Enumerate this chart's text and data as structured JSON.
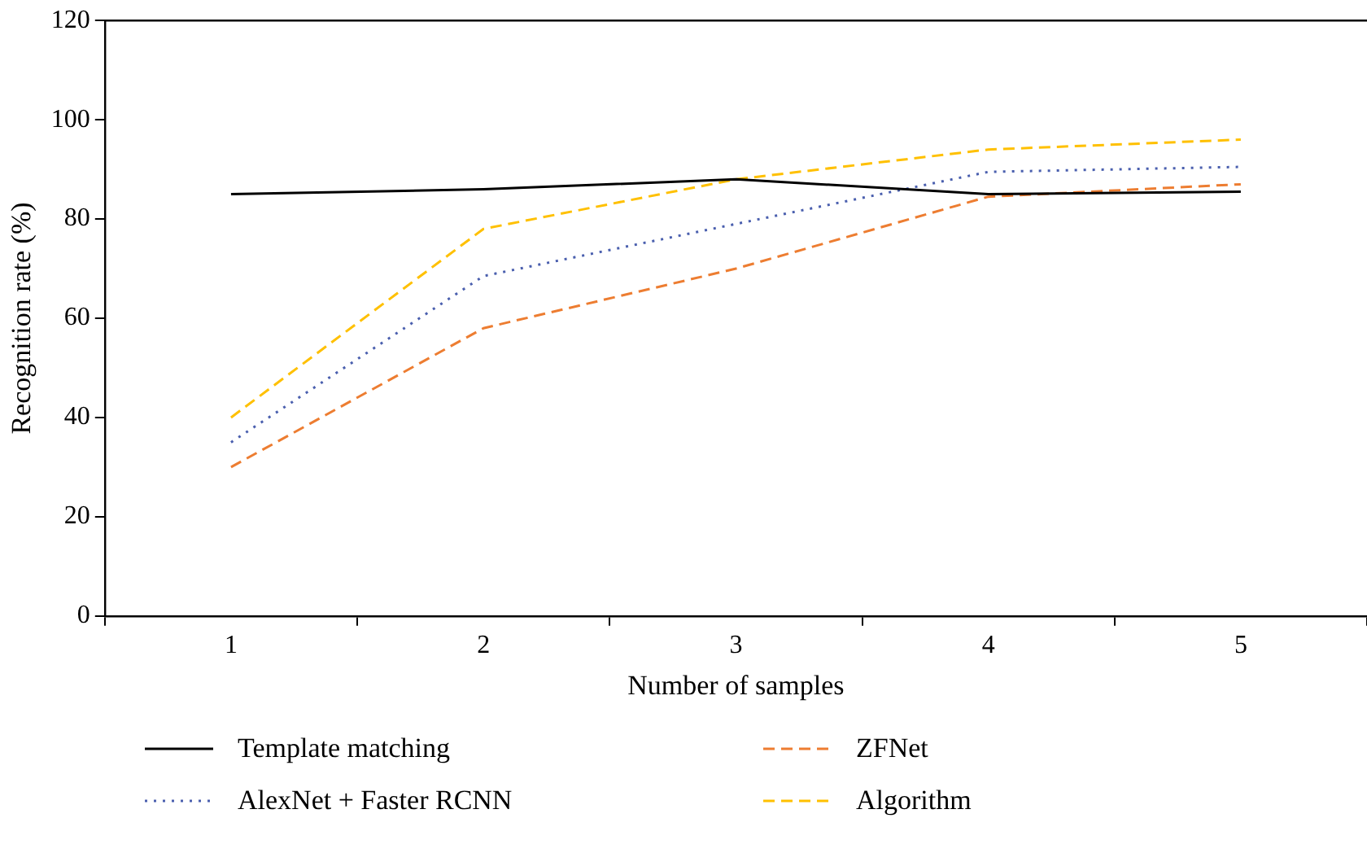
{
  "chart_data": {
    "type": "line",
    "xlabel": "Number of samples",
    "ylabel": "Recognition rate (%)",
    "categories": [
      "1",
      "2",
      "3",
      "4",
      "5"
    ],
    "ylim": [
      0,
      120
    ],
    "yticks": [
      0,
      20,
      40,
      60,
      80,
      100,
      120
    ],
    "grid": false,
    "legend": "bottom",
    "marker": "none",
    "series": [
      {
        "name": "Template matching",
        "color": "#000000",
        "line_style": "solid",
        "values": [
          85,
          86,
          88,
          85,
          85.5
        ]
      },
      {
        "name": "ZFNet",
        "color": "#ed7d31",
        "line_style": "dashed",
        "values": [
          30,
          58,
          70,
          84.5,
          87
        ]
      },
      {
        "name": "AlexNet + Faster RCNN",
        "color": "#4a5fae",
        "line_style": "dotted",
        "values": [
          35,
          68.5,
          79,
          89.5,
          90.5
        ]
      },
      {
        "name": "Algorithm",
        "color": "#ffc000",
        "line_style": "dashed",
        "values": [
          40,
          78,
          88,
          94,
          96
        ]
      }
    ]
  }
}
